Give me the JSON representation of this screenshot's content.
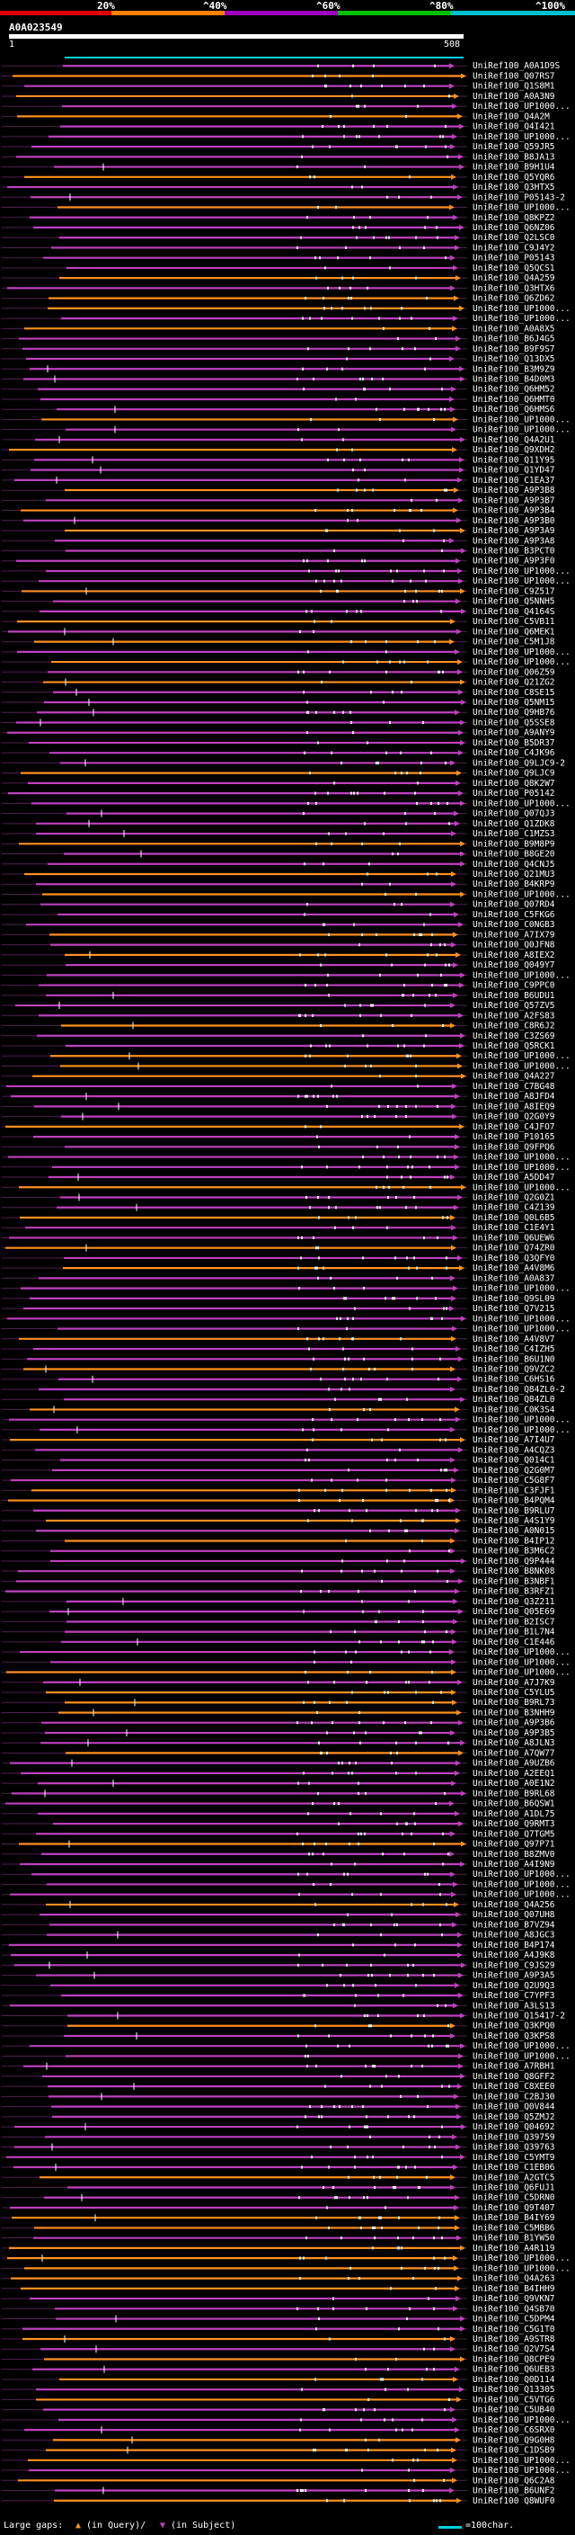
{
  "header": {
    "percent_labels": [
      "20%",
      "^40%",
      "^60%",
      "^80%",
      "^100%"
    ],
    "percent_colors": [
      "#e00000",
      "#ff8000",
      "#a000c0",
      "#00c000",
      "#00c0d0"
    ],
    "query_id": "A0A023549",
    "query_start": "1",
    "query_end": "508"
  },
  "colors": {
    "background": "#000000",
    "identity_orange": "#ff9020",
    "identity_purple": "#c040c0",
    "gap_dark": "#502050",
    "query_bar": "#ffffff",
    "scale_cyan": "#00d0e0"
  },
  "hits": [
    "UniRef100_A0A1D9S",
    "UniRef100_Q07RS7",
    "UniRef100_Q1S8M1",
    "UniRef100_A0A3N9",
    "UniRef100_UP1000...",
    "UniRef100_Q4A2M",
    "UniRef100_Q4I421",
    "UniRef100_UP1000...",
    "UniRef100_Q59JR5",
    "UniRef100_B8JA13",
    "UniRef100_B9H1U4",
    "UniRef100_Q5YQR6",
    "UniRef100_Q3HTX5",
    "UniRef100_P05143-2",
    "UniRef100_UP1000...",
    "UniRef100_Q8KPZ2",
    "UniRef100_Q6NZ06",
    "UniRef100_Q2LSC0",
    "UniRef100_C9J4Y2",
    "UniRef100_P05143",
    "UniRef100_Q5QCS1",
    "UniRef100_Q4A259",
    "UniRef100_Q3HTX6",
    "UniRef100_Q6ZD62",
    "UniRef100_UP1000...",
    "UniRef100_UP1000...",
    "UniRef100_A0A8X5",
    "UniRef100_B6J4G5",
    "UniRef100_B9F9S7",
    "UniRef100_Q13DX5",
    "UniRef100_B3M9Z9",
    "UniRef100_B4D0M3",
    "UniRef100_Q6HM52",
    "UniRef100_Q6HMT0",
    "UniRef100_Q6HMS6",
    "UniRef100_UP1000...",
    "UniRef100_UP1000...",
    "UniRef100_Q4A2U1",
    "UniRef100_Q9XDH2",
    "UniRef100_Q11Y95",
    "UniRef100_Q1YD47",
    "UniRef100_C1EA37",
    "UniRef100_A9P3B8",
    "UniRef100_A9P3B7",
    "UniRef100_A9P3B4",
    "UniRef100_A9P3B0",
    "UniRef100_A9P3A9",
    "UniRef100_A9P3A8",
    "UniRef100_B3PCT0",
    "UniRef100_A9P3F0",
    "UniRef100_UP1000...",
    "UniRef100_UP1000...",
    "UniRef100_C9Z517",
    "UniRef100_Q5NNH5",
    "UniRef100_Q4164S",
    "UniRef100_C5VB11",
    "UniRef100_Q6MEK1",
    "UniRef100_C5M1J8",
    "UniRef100_UP1000...",
    "UniRef100_UP1000...",
    "UniRef100_Q06Z59",
    "UniRef100_Q21ZG2",
    "UniRef100_C8SE15",
    "UniRef100_Q5NM15",
    "UniRef100_Q9HB76",
    "UniRef100_Q5SSE8",
    "UniRef100_A9ANY9",
    "UniRef100_B5DR37",
    "UniRef100_C4JK96",
    "UniRef100_Q9LJC9-2",
    "UniRef100_Q9LJC9",
    "UniRef100_Q8K2W7",
    "UniRef100_P05142",
    "UniRef100_UP1000...",
    "UniRef100_Q07QJ3",
    "UniRef100_Q1ZDK8",
    "UniRef100_C1MZS3",
    "UniRef100_B9M8P9",
    "UniRef100_B8GE20",
    "UniRef100_Q4CNJ5",
    "UniRef100_Q21MU3",
    "UniRef100_B4KRP9",
    "UniRef100_UP1000...",
    "UniRef100_Q07RD4",
    "UniRef100_C5FKG6",
    "UniRef100_C0NGB3",
    "UniRef100_A7IX79",
    "UniRef100_Q0JFN8",
    "UniRef100_A8IEX2",
    "UniRef100_Q049Y7",
    "UniRef100_UP1000...",
    "UniRef100_C9PPC0",
    "UniRef100_B6UDU1",
    "UniRef100_Q57ZV5",
    "UniRef100_A2FS83",
    "UniRef100_C8R6J2",
    "UniRef100_C3ZS69",
    "UniRef100_Q5RCK1",
    "UniRef100_UP1000...",
    "UniRef100_UP1000...",
    "UniRef100_Q4A227",
    "UniRef100_C7BG48",
    "UniRef100_A8JFD4",
    "UniRef100_A8IEQ9",
    "UniRef100_Q2G0Y9",
    "UniRef100_C4JFO7",
    "UniRef100_P10165",
    "UniRef100_Q9FPQ6",
    "UniRef100_UP1000...",
    "UniRef100_UP1000...",
    "UniRef100_A5DD47",
    "UniRef100_UP1000...",
    "UniRef100_Q2G0Z1",
    "UniRef100_C4Z139",
    "UniRef100_Q0L6B5",
    "UniRef100_C1E4Y1",
    "UniRef100_Q6UEW6",
    "UniRef100_Q74ZR0",
    "UniRef100_Q3QFY0",
    "UniRef100_A4V8M6",
    "UniRef100_A0A837",
    "UniRef100_UP1000...",
    "UniRef100_Q9SL09",
    "UniRef100_Q7V215",
    "UniRef100_UP1000...",
    "UniRef100_UP1000...",
    "UniRef100_A4V8V7",
    "UniRef100_C4IZH5",
    "UniRef100_B6U1N0",
    "UniRef100_Q9VZC2",
    "UniRef100_C6HS16",
    "UniRef100_Q84ZL0-2",
    "UniRef100_Q84ZL0",
    "UniRef100_C0K3S4",
    "UniRef100_UP1000...",
    "UniRef100_UP1000...",
    "UniRef100_A7I4U7",
    "UniRef100_A4CQZ3",
    "UniRef100_Q014C1",
    "UniRef100_Q2G0M7",
    "UniRef100_C5G8F7",
    "UniRef100_C3FJF1",
    "UniRef100_B4PQM4",
    "UniRef100_B9RLU7",
    "UniRef100_A4S1Y9",
    "UniRef100_A0N015",
    "UniRef100_B4IP12",
    "UniRef100_B3M6C2",
    "UniRef100_Q9P444",
    "UniRef100_B8NK08",
    "UniRef100_B3NBF1",
    "UniRef100_B3RFZ1",
    "UniRef100_Q3Z211",
    "UniRef100_Q05E69",
    "UniRef100_B2ISC7",
    "UniRef100_B1L7N4",
    "UniRef100_C1E446",
    "UniRef100_UP1000...",
    "UniRef100_UP1000...",
    "UniRef100_UP1000...",
    "UniRef100_A7J7K9",
    "UniRef100_C5YLU5",
    "UniRef100_B9RL73",
    "UniRef100_B3NHH9",
    "UniRef100_A9P3B6",
    "UniRef100_A9P3B5",
    "UniRef100_A8JLN3",
    "UniRef100_A7QW77",
    "UniRef100_A9UZB6",
    "UniRef100_A2EEQ1",
    "UniRef100_A0E1N2",
    "UniRef100_B9RL68",
    "UniRef100_B6QSW1",
    "UniRef100_A1DL75",
    "UniRef100_Q9RMT3",
    "UniRef100_Q7TGM5",
    "UniRef100_Q97P71",
    "UniRef100_B8ZMV0",
    "UniRef100_A4I9N9",
    "UniRef100_UP1000...",
    "UniRef100_UP1000...",
    "UniRef100_UP1000...",
    "UniRef100_Q4A256",
    "UniRef100_Q07UH8",
    "UniRef100_B7VZ94",
    "UniRef100_A8JGC3",
    "UniRef100_B4P174",
    "UniRef100_A4J9K8",
    "UniRef100_C9JS29",
    "UniRef100_A9P3A5",
    "UniRef100_Q2U9Q3",
    "UniRef100_C7YPF3",
    "UniRef100_A3LS13",
    "UniRef100_Q15417-2",
    "UniRef100_Q3KPQ0",
    "UniRef100_Q3KPS8",
    "UniRef100_UP1000...",
    "UniRef100_UP1000...",
    "UniRef100_A7RBH1",
    "UniRef100_Q8GFF2",
    "UniRef100_C8XEE0",
    "UniRef100_C2BJ30",
    "UniRef100_Q0V844",
    "UniRef100_Q5ZMJ2",
    "UniRef100_Q04692",
    "UniRef100_Q39759",
    "UniRef100_Q39763",
    "UniRef100_C5YMT9",
    "UniRef100_C1EB06",
    "UniRef100_A2GTC5",
    "UniRef100_Q6FUJ1",
    "UniRef100_C5DRN0",
    "UniRef100_Q9T407",
    "UniRef100_B4IY69",
    "UniRef100_C5MBB6",
    "UniRef100_B1YW50",
    "UniRef100_A4R119",
    "UniRef100_UP1000...",
    "UniRef100_UP1000...",
    "UniRef100_Q4A263",
    "UniRef100_B4IHH9",
    "UniRef100_Q9VKN7",
    "UniRef100_Q4SB70",
    "UniRef100_C5DPM4",
    "UniRef100_C5G1T0",
    "UniRef100_A9STR8",
    "UniRef100_Q2V7S4",
    "UniRef100_Q8CPE9",
    "UniRef100_Q6UEB3",
    "UniRef100_Q0D114",
    "UniRef100_Q13305",
    "UniRef100_C5VTG6",
    "UniRef100_C5UB40",
    "UniRef100_UP1000...",
    "UniRef100_C6SRX0",
    "UniRef100_Q9G0H8",
    "UniRef100_C1DSB9",
    "UniRef100_UP1000...",
    "UniRef100_UP1000...",
    "UniRef100_Q6C2A8",
    "UniRef100_B6UNF2",
    "UniRef100_Q8WUF0"
  ],
  "footer": {
    "large_gaps_label": "Large gaps:",
    "in_query_label": "(in Query)/",
    "in_subject_label": "(in Subject)",
    "scale_label": "=100char."
  }
}
